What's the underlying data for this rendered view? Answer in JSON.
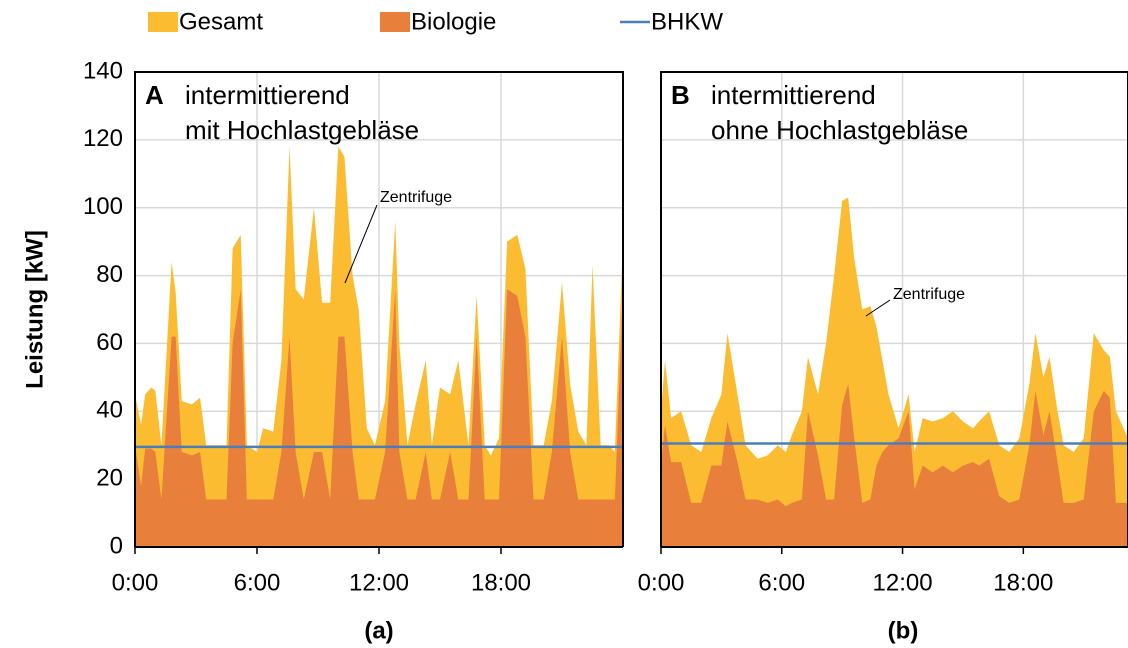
{
  "chart_data": [
    {
      "type": "area",
      "y_label": "Leistung [kW]",
      "panel_label": "A",
      "subtitle": [
        "intermittierend",
        "mit Hochlastgebläse"
      ],
      "annotation": "Zentrifuge",
      "caption": "(a)",
      "x": [
        0,
        0.3,
        0.5,
        0.8,
        1,
        1.3,
        1.8,
        2,
        2.3,
        2.8,
        3.2,
        3.5,
        4,
        4.5,
        4.8,
        5.2,
        5.5,
        6,
        6.3,
        6.8,
        7.2,
        7.6,
        7.9,
        8.3,
        8.8,
        9.2,
        9.6,
        10,
        10.3,
        10.7,
        11,
        11.4,
        11.8,
        12.3,
        12.8,
        13,
        13.4,
        13.8,
        14.3,
        14.6,
        15,
        15.5,
        15.9,
        16.4,
        16.8,
        17.2,
        17.5,
        17.9,
        18.3,
        18.8,
        19.2,
        19.6,
        20.1,
        20.5,
        21,
        21.4,
        21.8,
        22.2,
        22.5,
        22.9,
        23.3,
        23.6,
        24
      ],
      "series": [
        {
          "name": "Gesamt",
          "color": "#fbbc32",
          "values": [
            45,
            36,
            45,
            47,
            46,
            30,
            84,
            75,
            43,
            42,
            44,
            30,
            30,
            30,
            88,
            92,
            30,
            28,
            35,
            34,
            55,
            118,
            76,
            73,
            100,
            72,
            72,
            118,
            115,
            80,
            70,
            35,
            30,
            43,
            96,
            60,
            30,
            42,
            55,
            30,
            47,
            45,
            55,
            30,
            74,
            30,
            27,
            32,
            90,
            92,
            82,
            30,
            30,
            43,
            78,
            48,
            34,
            30,
            83,
            30,
            30,
            28,
            91
          ]
        },
        {
          "name": "Biologie",
          "color": "#e8803c",
          "values": [
            30,
            18,
            29,
            29,
            28,
            14,
            62,
            62,
            28,
            27,
            28,
            14,
            14,
            14,
            60,
            76,
            14,
            14,
            14,
            14,
            28,
            62,
            28,
            14,
            28,
            28,
            14,
            62,
            62,
            28,
            14,
            14,
            14,
            28,
            76,
            28,
            14,
            14,
            28,
            14,
            14,
            28,
            14,
            14,
            62,
            14,
            14,
            14,
            76,
            74,
            62,
            14,
            14,
            28,
            62,
            28,
            14,
            14,
            14,
            14,
            14,
            14,
            77
          ]
        },
        {
          "name": "BHKW",
          "color": "#4a7ebb",
          "line": true,
          "x": [
            0,
            24
          ],
          "values": [
            29.5,
            29.5
          ]
        }
      ],
      "xlim": [
        0,
        24
      ],
      "xticks": [
        {
          "value": 0,
          "label": "0:00"
        },
        {
          "value": 6,
          "label": "6:00"
        },
        {
          "value": 12,
          "label": "12:00"
        },
        {
          "value": 18,
          "label": "18:00"
        }
      ],
      "ylim": [
        0,
        140
      ],
      "yticks": [
        0,
        20,
        40,
        60,
        80,
        100,
        120,
        140
      ],
      "grid": true
    },
    {
      "type": "area",
      "panel_label": "B",
      "subtitle": [
        "intermittierend",
        "ohne Hochlastgebläse"
      ],
      "annotation": "Zentrifuge",
      "caption": "(b)",
      "x": [
        0,
        0.2,
        0.5,
        1,
        1.5,
        2,
        2.5,
        3,
        3.3,
        3.8,
        4.2,
        4.8,
        5.3,
        5.8,
        6.2,
        6.5,
        7,
        7.3,
        7.8,
        8.2,
        8.6,
        9,
        9.3,
        9.6,
        10,
        10.4,
        10.7,
        11,
        11.3,
        11.8,
        12.3,
        12.6,
        13,
        13.5,
        14,
        14.5,
        15,
        15.5,
        15.8,
        16.3,
        16.8,
        17.3,
        17.8,
        18.3,
        18.6,
        19,
        19.3,
        19.7,
        20,
        20.5,
        21,
        21.5,
        22,
        22.3,
        22.6,
        23.2
      ],
      "series": [
        {
          "color": "#fbbc32",
          "values": [
            40,
            55,
            38,
            40,
            30,
            28,
            38,
            45,
            63,
            45,
            30,
            26,
            27,
            30,
            28,
            33,
            40,
            56,
            45,
            60,
            80,
            102,
            103,
            85,
            70,
            71,
            65,
            55,
            45,
            35,
            45,
            28,
            38,
            37,
            38,
            40,
            37,
            35,
            37,
            40,
            30,
            28,
            32,
            48,
            63,
            50,
            56,
            40,
            30,
            28,
            32,
            63,
            58,
            56,
            40,
            32
          ]
        },
        {
          "color": "#e8803c",
          "values": [
            24,
            36,
            25,
            25,
            13,
            13,
            24,
            24,
            37,
            25,
            14,
            14,
            13,
            14,
            12,
            13,
            14,
            40,
            27,
            14,
            14,
            42,
            48,
            32,
            13,
            14,
            24,
            28,
            30,
            32,
            40,
            17,
            24,
            22,
            24,
            22,
            24,
            25,
            24,
            26,
            15,
            13,
            14,
            30,
            46,
            33,
            40,
            25,
            13,
            13,
            14,
            40,
            46,
            44,
            13,
            13
          ]
        },
        {
          "color": "#4a7ebb",
          "line": true,
          "x": [
            0,
            23.2
          ],
          "values": [
            30.5,
            30.5
          ]
        }
      ],
      "xlim": [
        0,
        23.2
      ],
      "xticks": [
        {
          "value": 0,
          "label": "0:00"
        },
        {
          "value": 6,
          "label": "6:00"
        },
        {
          "value": 12,
          "label": "12:00"
        },
        {
          "value": 18,
          "label": "18:00"
        }
      ],
      "ylim": [
        0,
        140
      ],
      "grid": true
    }
  ]
}
